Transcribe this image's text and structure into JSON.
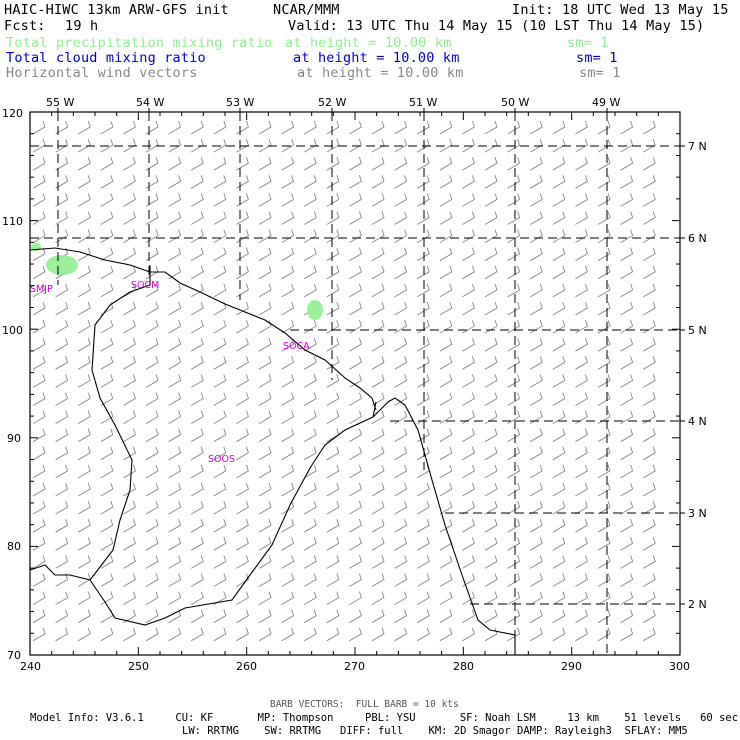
{
  "header": {
    "model": "HAIC-HIWC 13km ARW-GFS init",
    "org": "NCAR/MMM",
    "init": "Init: 18 UTC Wed 13 May 15",
    "fcst_label": "Fcst:",
    "fcst_value": "19 h",
    "valid": "Valid: 13 UTC Thu 14 May 15 (10 LST Thu 14 May 15)"
  },
  "fields": [
    {
      "name": "Total precipitation mixing ratio",
      "level": "at height = 10.00 km",
      "sm": "sm= 1",
      "color": "#90ee90"
    },
    {
      "name": "Total cloud mixing ratio",
      "level": "at height = 10.00 km",
      "sm": "sm= 1",
      "color": "#0000cc"
    },
    {
      "name": "Horizontal wind vectors",
      "level": "at height = 10.00 km",
      "sm": "sm= 1",
      "color": "#888888"
    }
  ],
  "map": {
    "x_ticks": [
      "240",
      "250",
      "260",
      "270",
      "280",
      "290",
      "300"
    ],
    "y_ticks": [
      "70",
      "80",
      "90",
      "100",
      "110",
      "120"
    ],
    "lon_labels": [
      "55 W",
      "54 W",
      "53 W",
      "52 W",
      "51 W",
      "50 W",
      "49 W"
    ],
    "lat_labels": [
      "7 N",
      "6 N",
      "5 N",
      "4 N",
      "3 N",
      "2 N"
    ],
    "stations": [
      "SMJP",
      "SOCM",
      "SOCA",
      "SOOS"
    ],
    "colors": {
      "coastline": "#000000",
      "grid": "#000000",
      "barbs": "#888888",
      "precip": "#90ee90",
      "stations": "#cc00cc"
    }
  },
  "footer": {
    "barb_note": "BARB VECTORS:  FULL BARB = 10 kts",
    "line1": "Model Info: V3.6.1     CU: KF       MP: Thompson     PBL: YSU       SF: Noah LSM     13 km    51 levels   60 sec",
    "line2": "LW: RRTMG    SW: RRTMG   DIFF: full    KM: 2D Smagor DAMP: Rayleigh3  SFLAY: MM5"
  }
}
